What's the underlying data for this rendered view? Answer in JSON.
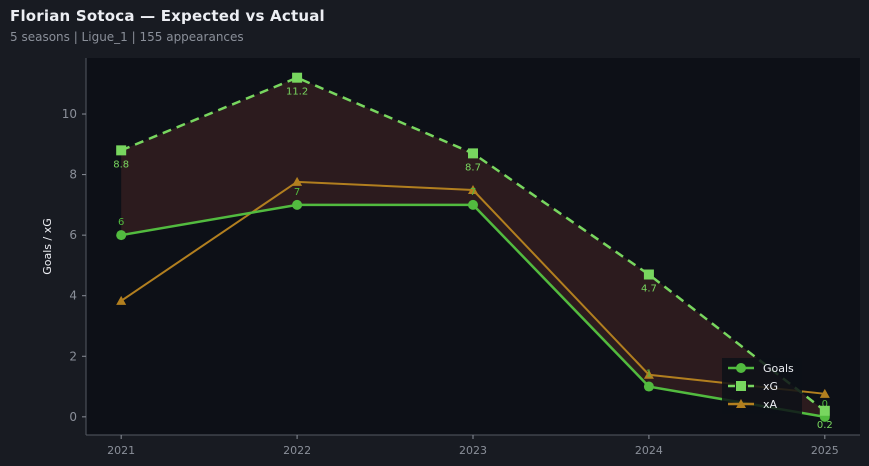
{
  "header": {
    "title": "Florian Sotoca — Expected vs Actual",
    "subtitle": "5 seasons | Ligue_1 | 155 appearances"
  },
  "chart_data": {
    "type": "line",
    "title": "Florian Sotoca — Expected vs Actual",
    "xlabel": "",
    "ylabel": "Goals / xG",
    "x": [
      2021,
      2022,
      2023,
      2024,
      2025
    ],
    "xlim": [
      2020.8,
      2025.2
    ],
    "ylim": [
      -0.6,
      11.85
    ],
    "yticks": [
      0,
      2,
      4,
      6,
      8,
      10
    ],
    "grid": false,
    "legend": "bottom-right",
    "shaded_between": [
      "Goals",
      "xG"
    ],
    "shade_color": "#2e1c1f",
    "series": [
      {
        "name": "Goals",
        "values": [
          6,
          7,
          7,
          1,
          0
        ],
        "labels": [
          "6",
          "7",
          "7",
          "1",
          "0"
        ],
        "color": "#52bb3f",
        "marker": "circle",
        "dash": false
      },
      {
        "name": "xG",
        "values": [
          8.8,
          11.2,
          8.7,
          4.7,
          0.2
        ],
        "labels": [
          "8.8",
          "11.2",
          "8.7",
          "4.7",
          "0.2"
        ],
        "color": "#78d65f",
        "marker": "square",
        "dash": true
      },
      {
        "name": "xA",
        "values": [
          3.83,
          7.76,
          7.49,
          1.39,
          0.76
        ],
        "color": "#b27f1f",
        "marker": "triangle",
        "dash": false
      }
    ]
  }
}
